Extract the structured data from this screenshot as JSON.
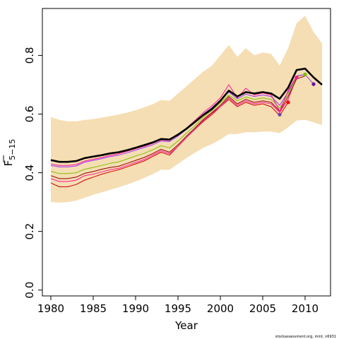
{
  "chart_data": {
    "type": "line",
    "xlabel": "Year",
    "ylabel": "F",
    "ylabel_subscript": "5−15",
    "xlim": [
      1979,
      2013
    ],
    "ylim": [
      -0.02,
      0.96
    ],
    "xticks": [
      1980,
      1985,
      1990,
      1995,
      2000,
      2005,
      2010
    ],
    "yticks": [
      0.0,
      0.2,
      0.4,
      0.6,
      0.8
    ],
    "ytick_labels": [
      "0.0",
      "0.2",
      "0.4",
      "0.6",
      "0.8"
    ],
    "grid": false,
    "credit": "stockassessment.org, mint, n6931",
    "band": {
      "color": "#f5deb3",
      "x": [
        1980,
        1981,
        1982,
        1983,
        1984,
        1985,
        1986,
        1987,
        1988,
        1989,
        1990,
        1991,
        1992,
        1993,
        1994,
        1995,
        1996,
        1997,
        1998,
        1999,
        2000,
        2001,
        2002,
        2003,
        2004,
        2005,
        2006,
        2007,
        2008,
        2009,
        2010,
        2011,
        2012
      ],
      "upper": [
        0.59,
        0.58,
        0.575,
        0.575,
        0.58,
        0.583,
        0.588,
        0.593,
        0.598,
        0.605,
        0.613,
        0.623,
        0.633,
        0.648,
        0.645,
        0.67,
        0.695,
        0.72,
        0.745,
        0.765,
        0.8,
        0.835,
        0.795,
        0.825,
        0.8,
        0.81,
        0.805,
        0.765,
        0.825,
        0.91,
        0.935,
        0.88,
        0.84
      ],
      "lower": [
        0.3,
        0.298,
        0.3,
        0.305,
        0.315,
        0.325,
        0.333,
        0.342,
        0.35,
        0.36,
        0.37,
        0.382,
        0.395,
        0.41,
        0.41,
        0.43,
        0.45,
        0.468,
        0.485,
        0.498,
        0.513,
        0.532,
        0.532,
        0.538,
        0.538,
        0.54,
        0.54,
        0.535,
        0.555,
        0.578,
        0.58,
        0.572,
        0.562
      ]
    },
    "series": [
      {
        "color": "#000000",
        "values": [
          0.443,
          0.437,
          0.437,
          0.44,
          0.45,
          0.455,
          0.46,
          0.466,
          0.47,
          0.477,
          0.485,
          0.494,
          0.503,
          0.515,
          0.513,
          0.53,
          0.55,
          0.573,
          0.597,
          0.617,
          0.645,
          0.68,
          0.66,
          0.675,
          0.67,
          0.675,
          0.67,
          0.652,
          0.69,
          0.75,
          0.755,
          0.725,
          0.7
        ]
      },
      {
        "color": "#cc0000",
        "values": [
          0.365,
          0.352,
          0.352,
          0.36,
          0.375,
          0.385,
          0.395,
          0.403,
          0.41,
          0.42,
          0.43,
          0.44,
          0.455,
          0.47,
          0.46,
          0.49,
          0.52,
          0.548,
          0.575,
          0.598,
          0.625,
          0.65,
          0.625,
          0.64,
          0.63,
          0.635,
          0.625,
          0.595,
          0.64
        ]
      },
      {
        "color": "#ff1493",
        "values": [
          0.38,
          0.37,
          0.37,
          0.375,
          0.39,
          0.395,
          0.403,
          0.41,
          0.415,
          0.425,
          0.435,
          0.445,
          0.46,
          0.475,
          0.465,
          0.49,
          0.52,
          0.548,
          0.578,
          0.603,
          0.625,
          0.655,
          0.63,
          0.645,
          0.635,
          0.64,
          0.635,
          0.605,
          0.65,
          0.725
        ]
      },
      {
        "color": "#8b0000",
        "values": [
          0.39,
          0.38,
          0.38,
          0.385,
          0.398,
          0.404,
          0.412,
          0.418,
          0.422,
          0.432,
          0.442,
          0.452,
          0.465,
          0.48,
          0.47,
          0.495,
          0.525,
          0.552,
          0.582,
          0.605,
          0.63,
          0.66,
          0.635,
          0.65,
          0.64,
          0.645,
          0.64,
          0.61,
          0.66,
          0.72,
          0.73
        ]
      },
      {
        "color": "#7fbf00",
        "values": [
          0.405,
          0.397,
          0.397,
          0.4,
          0.412,
          0.418,
          0.425,
          0.432,
          0.437,
          0.447,
          0.457,
          0.466,
          0.478,
          0.492,
          0.485,
          0.508,
          0.535,
          0.56,
          0.59,
          0.612,
          0.638,
          0.665,
          0.645,
          0.658,
          0.65,
          0.655,
          0.65,
          0.62,
          0.668,
          0.728,
          0.735
        ]
      },
      {
        "color": "#9b30ff",
        "values": [
          0.425,
          0.42,
          0.42,
          0.423,
          0.436,
          0.442,
          0.448,
          0.455,
          0.46,
          0.468,
          0.477,
          0.486,
          0.495,
          0.508,
          0.506,
          0.525,
          0.548,
          0.572,
          0.6,
          0.622,
          0.648,
          0.675,
          0.652,
          0.668,
          0.66,
          0.665,
          0.66,
          0.63,
          0.675,
          0.73,
          0.735,
          0.702
        ]
      },
      {
        "color": "#ff1493",
        "values": [
          0.43,
          0.425,
          0.425,
          0.428,
          0.44,
          0.446,
          0.452,
          0.459,
          0.465,
          0.473,
          0.482,
          0.49,
          0.5,
          0.512,
          0.51,
          0.53,
          0.552,
          0.578,
          0.605,
          0.628,
          0.655,
          0.7,
          0.655,
          0.688,
          0.665,
          0.672,
          0.665,
          0.61,
          0.68,
          0.73
        ]
      }
    ],
    "endpoints": [
      {
        "x": 2007,
        "y": 0.598,
        "color": "#7b3fa0"
      },
      {
        "x": 2008,
        "y": 0.64,
        "color": "#ff0000"
      },
      {
        "x": 2009,
        "y": 0.725,
        "color": "#ff1493"
      },
      {
        "x": 2010,
        "y": 0.735,
        "color": "#7fbf00"
      },
      {
        "x": 2011,
        "y": 0.702,
        "color": "#6a0dad"
      }
    ]
  }
}
